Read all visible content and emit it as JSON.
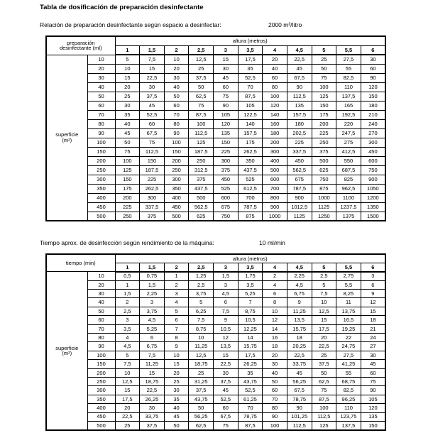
{
  "title": "Tabla de dosificación de preparación desinfectante",
  "colors": {
    "text": "#000000",
    "border": "#000000",
    "background": "#ffffff"
  },
  "section1": {
    "intro_label": "Relación de preparación desinfectante según espacio a desinfectar:",
    "intro_value": "2000 m³/litro",
    "table": {
      "corner_lines": [
        "preparación",
        "desinfectante (ml)"
      ],
      "col_group_label": "altura (metros)",
      "columns": [
        "1",
        "1,5",
        "2",
        "2,5",
        "3",
        "3,5",
        "4",
        "4,5",
        "5",
        "5,5",
        "6"
      ],
      "row_group_lines": [
        "superficie",
        "(m²)"
      ],
      "rows": [
        {
          "label": "10",
          "values": [
            "5",
            "7,5",
            "10",
            "12,5",
            "15",
            "17,5",
            "20",
            "22,5",
            "25",
            "27,5",
            "30"
          ]
        },
        {
          "label": "20",
          "values": [
            "10",
            "15",
            "20",
            "25",
            "30",
            "35",
            "40",
            "45",
            "50",
            "55",
            "60"
          ]
        },
        {
          "label": "30",
          "values": [
            "15",
            "22,5",
            "30",
            "37,5",
            "45",
            "52,5",
            "60",
            "67,5",
            "75",
            "82,5",
            "90"
          ]
        },
        {
          "label": "40",
          "values": [
            "20",
            "30",
            "40",
            "50",
            "60",
            "70",
            "80",
            "90",
            "100",
            "110",
            "120"
          ]
        },
        {
          "label": "50",
          "values": [
            "25",
            "37,5",
            "50",
            "62,5",
            "75",
            "87,5",
            "100",
            "112,5",
            "125",
            "137,5",
            "150"
          ]
        },
        {
          "label": "60",
          "values": [
            "30",
            "45",
            "60",
            "75",
            "90",
            "105",
            "120",
            "135",
            "150",
            "165",
            "180"
          ]
        },
        {
          "label": "70",
          "values": [
            "35",
            "52,5",
            "70",
            "87,5",
            "105",
            "122,5",
            "140",
            "157,5",
            "175",
            "192,5",
            "210"
          ]
        },
        {
          "label": "80",
          "values": [
            "40",
            "60",
            "80",
            "100",
            "120",
            "140",
            "160",
            "180",
            "200",
            "220",
            "240"
          ]
        },
        {
          "label": "90",
          "values": [
            "45",
            "67,5",
            "90",
            "112,5",
            "135",
            "157,5",
            "180",
            "202,5",
            "225",
            "247,5",
            "270"
          ]
        },
        {
          "label": "100",
          "values": [
            "50",
            "75",
            "100",
            "125",
            "150",
            "175",
            "200",
            "225",
            "250",
            "275",
            "300"
          ]
        },
        {
          "label": "150",
          "values": [
            "75",
            "112,5",
            "150",
            "187,5",
            "225",
            "262,5",
            "300",
            "337,5",
            "375",
            "412,5",
            "450"
          ]
        },
        {
          "label": "200",
          "values": [
            "100",
            "150",
            "200",
            "250",
            "300",
            "350",
            "400",
            "450",
            "500",
            "550",
            "600"
          ]
        },
        {
          "label": "250",
          "values": [
            "125",
            "187,5",
            "250",
            "312,5",
            "375",
            "437,5",
            "500",
            "562,5",
            "625",
            "687,5",
            "750"
          ]
        },
        {
          "label": "300",
          "values": [
            "150",
            "225",
            "300",
            "375",
            "450",
            "525",
            "600",
            "675",
            "750",
            "825",
            "900"
          ]
        },
        {
          "label": "350",
          "values": [
            "175",
            "262,5",
            "350",
            "437,5",
            "525",
            "612,5",
            "700",
            "787,5",
            "875",
            "962,5",
            "1050"
          ]
        },
        {
          "label": "400",
          "values": [
            "200",
            "300",
            "400",
            "500",
            "600",
            "700",
            "800",
            "900",
            "1000",
            "1100",
            "1200"
          ]
        },
        {
          "label": "450",
          "values": [
            "225",
            "337,5",
            "450",
            "562,5",
            "675",
            "787,5",
            "900",
            "1012,5",
            "1125",
            "1237,5",
            "1350"
          ]
        },
        {
          "label": "500",
          "values": [
            "250",
            "375",
            "500",
            "625",
            "750",
            "875",
            "1000",
            "1125",
            "1250",
            "1375",
            "1500"
          ]
        }
      ]
    }
  },
  "section2": {
    "intro_label": "Tiempo aprox. de desinfección según rendimiento de la máquina:",
    "intro_value": "10 ml/min",
    "table": {
      "corner_lines": [
        "tiempo (min)"
      ],
      "col_group_label": "altura (metros)",
      "columns": [
        "1",
        "1,5",
        "2",
        "2,5",
        "3",
        "3,5",
        "4",
        "4,5",
        "5",
        "5,5",
        "6"
      ],
      "row_group_lines": [
        "superficie",
        "(m²)"
      ],
      "rows": [
        {
          "label": "10",
          "values": [
            "0,5",
            "0,75",
            "1",
            "1,25",
            "1,5",
            "1,75",
            "2",
            "2,25",
            "2,5",
            "2,75",
            "3"
          ]
        },
        {
          "label": "20",
          "values": [
            "1",
            "1,5",
            "2",
            "2,5",
            "3",
            "3,5",
            "4",
            "4,5",
            "5",
            "5,5",
            "6"
          ]
        },
        {
          "label": "30",
          "values": [
            "1,5",
            "2,25",
            "3",
            "3,75",
            "4,5",
            "5,25",
            "6",
            "6,75",
            "7,5",
            "8,25",
            "9"
          ]
        },
        {
          "label": "40",
          "values": [
            "2",
            "3",
            "4",
            "5",
            "6",
            "7",
            "8",
            "9",
            "10",
            "11",
            "12"
          ]
        },
        {
          "label": "50",
          "values": [
            "2,5",
            "3,75",
            "5",
            "6,25",
            "7,5",
            "8,75",
            "10",
            "11,25",
            "12,5",
            "13,75",
            "15"
          ]
        },
        {
          "label": "60",
          "values": [
            "3",
            "4,5",
            "6",
            "7,5",
            "9",
            "10,5",
            "12",
            "13,5",
            "15",
            "16,5",
            "18"
          ]
        },
        {
          "label": "70",
          "values": [
            "3,5",
            "5,25",
            "7",
            "8,75",
            "10,5",
            "12,25",
            "14",
            "15,75",
            "17,5",
            "19,25",
            "21"
          ]
        },
        {
          "label": "80",
          "values": [
            "4",
            "6",
            "8",
            "10",
            "12",
            "14",
            "16",
            "18",
            "20",
            "22",
            "24"
          ]
        },
        {
          "label": "90",
          "values": [
            "4,5",
            "6,75",
            "9",
            "11,25",
            "13,5",
            "15,75",
            "18",
            "20,25",
            "22,5",
            "24,75",
            "27"
          ]
        },
        {
          "label": "100",
          "values": [
            "5",
            "7,5",
            "10",
            "12,5",
            "15",
            "17,5",
            "20",
            "22,5",
            "25",
            "27,5",
            "30"
          ]
        },
        {
          "label": "150",
          "values": [
            "7,5",
            "11,25",
            "15",
            "18,75",
            "22,5",
            "26,25",
            "30",
            "33,75",
            "37,5",
            "41,25",
            "45"
          ]
        },
        {
          "label": "200",
          "values": [
            "10",
            "15",
            "20",
            "25",
            "30",
            "35",
            "40",
            "45",
            "50",
            "55",
            "60"
          ]
        },
        {
          "label": "250",
          "values": [
            "12,5",
            "18,75",
            "25",
            "31,25",
            "37,5",
            "43,75",
            "50",
            "56,25",
            "62,5",
            "68,75",
            "75"
          ]
        },
        {
          "label": "300",
          "values": [
            "15",
            "22,5",
            "30",
            "37,5",
            "45",
            "52,5",
            "60",
            "67,5",
            "75",
            "82,5",
            "90"
          ]
        },
        {
          "label": "350",
          "values": [
            "17,5",
            "26,25",
            "35",
            "43,75",
            "52,5",
            "61,25",
            "70",
            "78,75",
            "87,5",
            "96,25",
            "105"
          ]
        },
        {
          "label": "400",
          "values": [
            "20",
            "30",
            "40",
            "50",
            "60",
            "70",
            "80",
            "90",
            "100",
            "110",
            "120"
          ]
        },
        {
          "label": "450",
          "values": [
            "22,5",
            "33,75",
            "45",
            "56,25",
            "67,5",
            "78,75",
            "90",
            "101,25",
            "112,5",
            "123,75",
            "135"
          ]
        },
        {
          "label": "500",
          "values": [
            "25",
            "37,5",
            "50",
            "62,5",
            "75",
            "87,5",
            "100",
            "112,5",
            "125",
            "137,5",
            "150"
          ]
        }
      ]
    }
  }
}
